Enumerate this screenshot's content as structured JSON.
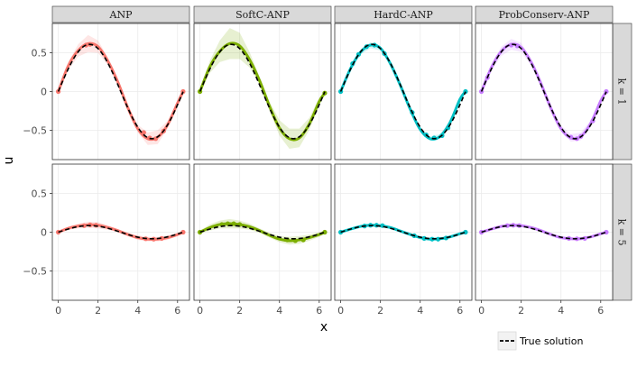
{
  "chart_data": {
    "type": "line",
    "facet_columns": [
      "ANP",
      "SoftC-ANP",
      "HardC-ANP",
      "ProbConserv-ANP"
    ],
    "facet_rows": [
      "k = 1",
      "k = 5"
    ],
    "xlabel": "x",
    "ylabel": "u",
    "xlim": [
      -0.3,
      6.6
    ],
    "ylim": [
      -0.88,
      0.88
    ],
    "x_ticks": [
      0,
      2,
      4,
      6
    ],
    "y_ticks": [
      -0.5,
      0,
      0.5
    ],
    "x_tick_labels": [
      "0",
      "2",
      "4",
      "6"
    ],
    "y_tick_labels": [
      "−0.5",
      "0",
      "0.5"
    ],
    "grid": true,
    "legend": {
      "position": "bottom-right",
      "label": "True solution"
    },
    "colors": {
      "ANP": "#F8766D",
      "SoftC-ANP": "#7CAE00",
      "HardC-ANP": "#00BFC4",
      "ProbConserv-ANP": "#C77CFF",
      "true_solution": "#000000",
      "panel_border": "#333333",
      "strip_fill": "#d9d9d9",
      "grid": "#ebebeb"
    },
    "panels": [
      {
        "column": "ANP",
        "row": "k = 1",
        "true_solution": {
          "amplitude": 0.61,
          "x_start": 0,
          "x_end": 6.28
        },
        "prediction": {
          "x": [
            0,
            0.5,
            1.0,
            1.5,
            2.0,
            2.5,
            3.0,
            3.5,
            4.0,
            4.5,
            5.0,
            5.5,
            6.0,
            6.28
          ],
          "y": [
            0.0,
            0.33,
            0.53,
            0.62,
            0.58,
            0.39,
            0.12,
            -0.21,
            -0.48,
            -0.61,
            -0.59,
            -0.43,
            -0.15,
            0.0
          ],
          "band_halfwidth": [
            0.02,
            0.05,
            0.08,
            0.11,
            0.08,
            0.05,
            0.03,
            0.03,
            0.05,
            0.08,
            0.09,
            0.05,
            0.03,
            0.02
          ]
        },
        "observed_points": {
          "x": [
            0,
            1.4,
            1.6,
            4.3,
            4.6,
            4.9,
            5.3,
            6.28
          ],
          "y": [
            0.0,
            0.6,
            0.61,
            -0.53,
            -0.6,
            -0.61,
            -0.51,
            0.0
          ]
        }
      },
      {
        "column": "SoftC-ANP",
        "row": "k = 1",
        "true_solution": {
          "amplitude": 0.61,
          "x_start": 0,
          "x_end": 6.28
        },
        "prediction": {
          "x": [
            0,
            0.5,
            1.0,
            1.5,
            2.0,
            2.5,
            3.0,
            3.5,
            4.0,
            4.5,
            5.0,
            5.5,
            6.0,
            6.28
          ],
          "y": [
            0.0,
            0.32,
            0.52,
            0.62,
            0.59,
            0.41,
            0.14,
            -0.19,
            -0.47,
            -0.61,
            -0.6,
            -0.42,
            -0.13,
            -0.02
          ],
          "band_halfwidth": [
            0.03,
            0.08,
            0.14,
            0.2,
            0.17,
            0.1,
            0.05,
            0.06,
            0.1,
            0.13,
            0.12,
            0.08,
            0.05,
            0.03
          ]
        },
        "observed_points": {
          "x": [
            0,
            6.28
          ],
          "y": [
            0.0,
            -0.02
          ]
        }
      },
      {
        "column": "HardC-ANP",
        "row": "k = 1",
        "true_solution": {
          "amplitude": 0.61,
          "x_start": 0,
          "x_end": 6.28
        },
        "prediction": {
          "x": [
            0,
            0.5,
            1.0,
            1.5,
            2.0,
            2.5,
            3.0,
            3.5,
            4.0,
            4.5,
            5.0,
            5.5,
            6.0,
            6.28
          ],
          "y": [
            0.0,
            0.3,
            0.51,
            0.6,
            0.56,
            0.36,
            0.08,
            -0.23,
            -0.49,
            -0.61,
            -0.58,
            -0.4,
            -0.1,
            0.0
          ],
          "band_halfwidth": [
            0.01,
            0.02,
            0.03,
            0.04,
            0.03,
            0.02,
            0.01,
            0.01,
            0.02,
            0.03,
            0.03,
            0.02,
            0.01,
            0.01
          ]
        },
        "observed_points": {
          "x": [
            0,
            0.6,
            0.9,
            1.3,
            1.7,
            2.2,
            3.6,
            4.3,
            4.7,
            5.1,
            5.4,
            6.28
          ],
          "y": [
            0.0,
            0.36,
            0.48,
            0.58,
            0.6,
            0.49,
            -0.27,
            -0.56,
            -0.6,
            -0.57,
            -0.47,
            0.0
          ]
        }
      },
      {
        "column": "ProbConserv-ANP",
        "row": "k = 1",
        "true_solution": {
          "amplitude": 0.61,
          "x_start": 0,
          "x_end": 6.28
        },
        "prediction": {
          "x": [
            0,
            0.5,
            1.0,
            1.5,
            2.0,
            2.5,
            3.0,
            3.5,
            4.0,
            4.5,
            5.0,
            5.5,
            6.0,
            6.28
          ],
          "y": [
            0.0,
            0.31,
            0.52,
            0.61,
            0.57,
            0.38,
            0.1,
            -0.22,
            -0.48,
            -0.6,
            -0.58,
            -0.41,
            -0.12,
            0.0
          ],
          "band_halfwidth": [
            0.02,
            0.04,
            0.06,
            0.07,
            0.06,
            0.04,
            0.02,
            0.02,
            0.04,
            0.05,
            0.05,
            0.04,
            0.02,
            0.02
          ]
        },
        "observed_points": {
          "x": [
            0,
            0.3,
            1.5,
            1.8,
            4.5,
            4.8,
            5.0,
            5.6,
            6.28
          ],
          "y": [
            0.0,
            0.18,
            0.6,
            0.59,
            -0.59,
            -0.61,
            -0.58,
            -0.38,
            0.0
          ]
        }
      },
      {
        "column": "ANP",
        "row": "k = 5",
        "true_solution": {
          "amplitude": 0.085,
          "x_start": 0,
          "x_end": 6.28
        },
        "prediction": {
          "x": [
            0,
            0.5,
            1.0,
            1.5,
            2.0,
            2.5,
            3.0,
            3.5,
            4.0,
            4.5,
            5.0,
            5.5,
            6.0,
            6.28
          ],
          "y": [
            0.0,
            0.05,
            0.08,
            0.095,
            0.09,
            0.06,
            0.02,
            -0.03,
            -0.07,
            -0.09,
            -0.09,
            -0.07,
            -0.03,
            0.0
          ],
          "band_halfwidth": [
            0.01,
            0.02,
            0.03,
            0.04,
            0.04,
            0.03,
            0.02,
            0.02,
            0.03,
            0.03,
            0.03,
            0.03,
            0.02,
            0.01
          ]
        },
        "observed_points": {
          "x": [
            0,
            1.3,
            1.6,
            1.9,
            4.4,
            4.8,
            5.2,
            6.28
          ],
          "y": [
            0.0,
            0.085,
            0.095,
            0.09,
            -0.085,
            -0.09,
            -0.08,
            0.0
          ]
        }
      },
      {
        "column": "SoftC-ANP",
        "row": "k = 5",
        "true_solution": {
          "amplitude": 0.085,
          "x_start": 0,
          "x_end": 6.28
        },
        "prediction": {
          "x": [
            0,
            0.5,
            1.0,
            1.5,
            2.0,
            2.5,
            3.0,
            3.5,
            4.0,
            4.5,
            5.0,
            5.5,
            6.0,
            6.28
          ],
          "y": [
            0.0,
            0.06,
            0.1,
            0.11,
            0.1,
            0.07,
            0.02,
            -0.04,
            -0.09,
            -0.11,
            -0.1,
            -0.07,
            -0.03,
            0.0
          ],
          "band_halfwidth": [
            0.02,
            0.04,
            0.05,
            0.06,
            0.05,
            0.04,
            0.03,
            0.03,
            0.04,
            0.05,
            0.05,
            0.04,
            0.03,
            0.02
          ]
        },
        "observed_points": {
          "x": [
            0,
            1.1,
            1.4,
            1.7,
            2.0,
            4.4,
            4.8,
            5.2,
            6.28
          ],
          "y": [
            0.0,
            0.1,
            0.11,
            0.11,
            0.1,
            -0.1,
            -0.11,
            -0.1,
            0.0
          ]
        }
      },
      {
        "column": "HardC-ANP",
        "row": "k = 5",
        "true_solution": {
          "amplitude": 0.085,
          "x_start": 0,
          "x_end": 6.28
        },
        "prediction": {
          "x": [
            0,
            0.5,
            1.0,
            1.5,
            2.0,
            2.5,
            3.0,
            3.5,
            4.0,
            4.5,
            5.0,
            5.5,
            6.0,
            6.28
          ],
          "y": [
            0.0,
            0.04,
            0.075,
            0.09,
            0.085,
            0.06,
            0.015,
            -0.03,
            -0.07,
            -0.09,
            -0.085,
            -0.06,
            -0.02,
            0.0
          ],
          "band_halfwidth": [
            0.005,
            0.01,
            0.01,
            0.015,
            0.01,
            0.01,
            0.005,
            0.005,
            0.01,
            0.01,
            0.01,
            0.01,
            0.005,
            0.005
          ]
        },
        "observed_points": {
          "x": [
            0,
            1.2,
            1.5,
            1.8,
            2.1,
            3.7,
            4.2,
            4.6,
            4.9,
            5.3,
            6.28
          ],
          "y": [
            0.0,
            0.08,
            0.09,
            0.09,
            0.085,
            -0.045,
            -0.08,
            -0.09,
            -0.09,
            -0.075,
            0.0
          ]
        }
      },
      {
        "column": "ProbConserv-ANP",
        "row": "k = 5",
        "true_solution": {
          "amplitude": 0.085,
          "x_start": 0,
          "x_end": 6.28
        },
        "prediction": {
          "x": [
            0,
            0.5,
            1.0,
            1.5,
            2.0,
            2.5,
            3.0,
            3.5,
            4.0,
            4.5,
            5.0,
            5.5,
            6.0,
            6.28
          ],
          "y": [
            0.0,
            0.04,
            0.075,
            0.09,
            0.085,
            0.06,
            0.02,
            -0.03,
            -0.07,
            -0.085,
            -0.085,
            -0.06,
            -0.02,
            0.0
          ],
          "band_halfwidth": [
            0.01,
            0.015,
            0.02,
            0.025,
            0.02,
            0.015,
            0.01,
            0.01,
            0.015,
            0.02,
            0.02,
            0.015,
            0.01,
            0.01
          ]
        },
        "observed_points": {
          "x": [
            0,
            1.3,
            1.6,
            1.9,
            4.4,
            4.8,
            5.2,
            6.28
          ],
          "y": [
            0.0,
            0.085,
            0.09,
            0.085,
            -0.08,
            -0.085,
            -0.08,
            0.0
          ]
        }
      }
    ]
  }
}
